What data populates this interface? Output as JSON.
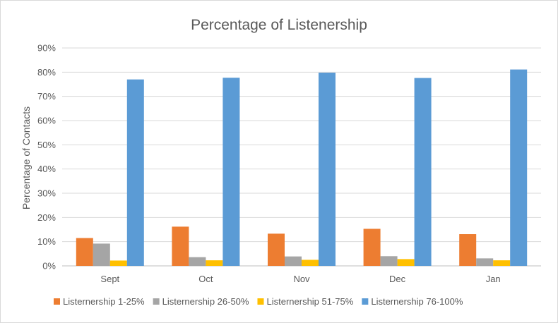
{
  "chart_data": {
    "type": "bar",
    "title": "Percentage of Listenership",
    "xlabel": "",
    "ylabel": "Percentage of Contacts",
    "ylim": [
      0,
      90
    ],
    "ytick_step": 10,
    "ytick_suffix": "%",
    "grid": true,
    "legend_position": "bottom",
    "categories": [
      "Sept",
      "Oct",
      "Nov",
      "Dec",
      "Jan"
    ],
    "series": [
      {
        "name": "Listernership 1-25%",
        "color": "#ed7d31",
        "values": [
          11.5,
          16.2,
          13.3,
          15.3,
          13.1
        ]
      },
      {
        "name": "Listernership 26-50%",
        "color": "#a5a5a5",
        "values": [
          9.2,
          3.6,
          3.9,
          4.0,
          3.1
        ]
      },
      {
        "name": "Listernership 51-75%",
        "color": "#ffc000",
        "values": [
          2.2,
          2.3,
          2.5,
          2.8,
          2.3
        ]
      },
      {
        "name": "Listernership 76-100%",
        "color": "#5b9bd5",
        "values": [
          77.0,
          77.7,
          79.8,
          77.6,
          81.1
        ]
      }
    ]
  }
}
